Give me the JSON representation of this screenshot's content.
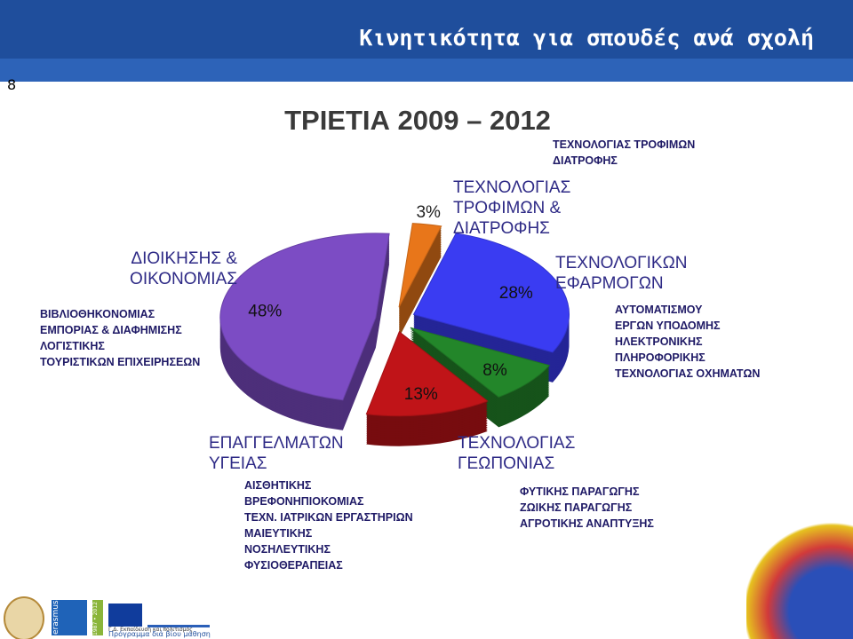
{
  "slide": {
    "title": "Κινητικότητα για σπουδές ανά σχολή",
    "page_number": "8",
    "footer": {
      "erasmus": "erasmus",
      "years": "1987 • 2012",
      "directorate": "Γ.Δ. Εκπαίδευση και πολιτισμός",
      "programme": "Πρόγραμμα διά βίου μάθηση"
    }
  },
  "chart_data": {
    "type": "pie",
    "title": "ΤΡΙΕΤΙΑ 2009 – 2012",
    "categories": [
      "ΤΕΧΝΟΛΟΓΙΑΣ ΤΡΟΦΙΜΩΝ & ΔΙΑΤΡΟΦΗΣ",
      "ΤΕΧΝΟΛΟΓΙΚΩΝ ΕΦΑΡΜΟΓΩΝ",
      "ΤΕΧΝΟΛΟΓΙΑΣ ΓΕΩΠΟΝΙΑΣ",
      "ΕΠΑΓΓΕΛΜΑΤΩΝ ΥΓΕΙΑΣ",
      "ΔΙΟΙΚΗΣΗΣ & ΟΙΚΟΝΟΜΙΑΣ"
    ],
    "values": [
      3,
      28,
      8,
      13,
      48
    ],
    "value_labels": [
      "3%",
      "28%",
      "8%",
      "13%",
      "48%"
    ],
    "colors": [
      "#e8761a",
      "#3a3cf2",
      "#23862a",
      "#c01418",
      "#7c4cc4"
    ],
    "departments": [
      [
        "ΤΕΧΝΟΛΟΓΙΑΣ ΤΡΟΦΙΜΩΝ",
        "ΔΙΑΤΡΟΦΗΣ"
      ],
      [
        "ΑΥΤΟΜΑΤΙΣΜΟΥ",
        "ΕΡΓΩΝ ΥΠΟΔΟΜΗΣ",
        "ΗΛΕΚΤΡΟΝΙΚΗΣ",
        "ΠΛΗΡΟΦΟΡΙΚΗΣ",
        "ΤΕΧΝΟΛΟΓΙΑΣ ΟΧΗΜΑΤΩΝ"
      ],
      [
        "ΦΥΤΙΚΗΣ ΠΑΡΑΓΩΓΗΣ",
        "ΖΩΙΚΗΣ ΠΑΡΑΓΩΓΗΣ",
        "ΑΓΡΟΤΙΚΗΣ ΑΝΑΠΤΥΞΗΣ"
      ],
      [
        "ΑΙΣΘΗΤΙΚΗΣ",
        "ΒΡΕΦΟΝΗΠΙΟΚΟΜΙΑΣ",
        "ΤΕΧΝ. ΙΑΤΡΙΚΩΝ ΕΡΓΑΣΤΗΡΙΩΝ",
        "ΜΑΙΕΥΤΙΚΗΣ",
        "ΝΟΣΗΛΕΥΤΙΚΗΣ",
        "ΦΥΣΙΟΘΕΡΑΠΕΙΑΣ"
      ],
      [
        "ΒΙΒΛΙΟΘΗΚΟΝΟΜΙΑΣ",
        "ΕΜΠΟΡΙΑΣ & ΔΙΑΦΗΜΙΣΗΣ",
        "ΛΟΓΙΣΤΙΚΗΣ",
        "ΤΟΥΡΙΣΤΙΚΩΝ ΕΠΙΧΕΙΡΗΣΕΩΝ"
      ]
    ]
  }
}
